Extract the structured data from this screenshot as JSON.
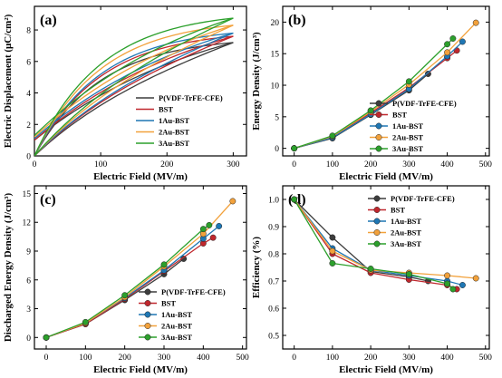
{
  "colors": {
    "P(VDF-TrFE-CFE)": "#3d3d3d",
    "BST": "#c0272d",
    "1Au-BST": "#1f77b4",
    "2Au-BST": "#f2a13b",
    "3Au-BST": "#2ca02c"
  },
  "chart_data": [
    {
      "panel": "(a)",
      "type": "line",
      "xlabel": "Electric Field (MV/m)",
      "ylabel": "Electric Displacement (μC/cm²)",
      "xlim": [
        0,
        320
      ],
      "ylim": [
        0,
        9.5
      ],
      "xticks": [
        0,
        100,
        200,
        300
      ],
      "yticks": [
        0,
        2,
        4,
        6,
        8
      ],
      "legend": "bottom-right",
      "series": [
        {
          "name": "P(VDF-TrFE-CFE)",
          "Dmax": 7.2,
          "Dr": 1.0,
          "Emax": 300
        },
        {
          "name": "BST",
          "Dmax": 7.6,
          "Dr": 1.0,
          "Emax": 300
        },
        {
          "name": "1Au-BST",
          "Dmax": 7.8,
          "Dr": 1.1,
          "Emax": 300
        },
        {
          "name": "2Au-BST",
          "Dmax": 8.3,
          "Dr": 1.2,
          "Emax": 300
        },
        {
          "name": "3Au-BST",
          "Dmax": 8.75,
          "Dr": 1.3,
          "Emax": 300
        }
      ]
    },
    {
      "panel": "(b)",
      "type": "line",
      "xlabel": "Electric Field (MV/m)",
      "ylabel": "Energy Density (J/cm³)",
      "xlim": [
        -30,
        510
      ],
      "ylim": [
        -1.2,
        22.5
      ],
      "xticks": [
        0,
        100,
        200,
        300,
        400,
        500
      ],
      "yticks": [
        0,
        5,
        10,
        15,
        20
      ],
      "legend": "center-right",
      "series": [
        {
          "name": "P(VDF-TrFE-CFE)",
          "x": [
            0,
            100,
            200,
            300,
            350
          ],
          "y": [
            0,
            1.6,
            5.3,
            9.2,
            11.8
          ]
        },
        {
          "name": "BST",
          "x": [
            0,
            100,
            200,
            300,
            400,
            425
          ],
          "y": [
            0,
            1.8,
            5.6,
            9.6,
            14.3,
            15.5
          ]
        },
        {
          "name": "1Au-BST",
          "x": [
            0,
            100,
            200,
            300,
            400,
            440
          ],
          "y": [
            0,
            1.7,
            5.4,
            9.4,
            14.6,
            16.9
          ]
        },
        {
          "name": "2Au-BST",
          "x": [
            0,
            100,
            200,
            300,
            400,
            475
          ],
          "y": [
            0,
            1.9,
            5.8,
            10.1,
            15.2,
            19.9
          ]
        },
        {
          "name": "3Au-BST",
          "x": [
            0,
            100,
            200,
            300,
            400,
            415
          ],
          "y": [
            0,
            2.0,
            6.0,
            10.6,
            16.5,
            17.4
          ]
        }
      ]
    },
    {
      "panel": "(c)",
      "type": "line",
      "xlabel": "Electric Field (MV/m)",
      "ylabel": "Discharged Energy Density (J/cm³)",
      "xlim": [
        -30,
        510
      ],
      "ylim": [
        -1.2,
        15.8
      ],
      "xticks": [
        0,
        100,
        200,
        300,
        400,
        500
      ],
      "yticks": [
        0,
        3,
        6,
        9,
        12,
        15
      ],
      "legend": "center-right",
      "series": [
        {
          "name": "P(VDF-TrFE-CFE)",
          "x": [
            0,
            100,
            200,
            300,
            350
          ],
          "y": [
            0,
            1.4,
            3.9,
            6.6,
            8.2
          ]
        },
        {
          "name": "BST",
          "x": [
            0,
            100,
            200,
            300,
            400,
            425
          ],
          "y": [
            0,
            1.4,
            4.0,
            6.9,
            9.8,
            10.4
          ]
        },
        {
          "name": "1Au-BST",
          "x": [
            0,
            100,
            200,
            300,
            400,
            440
          ],
          "y": [
            0,
            1.5,
            4.1,
            7.0,
            10.3,
            11.6
          ]
        },
        {
          "name": "2Au-BST",
          "x": [
            0,
            100,
            200,
            300,
            400,
            475
          ],
          "y": [
            0,
            1.5,
            4.2,
            7.4,
            10.8,
            14.2
          ]
        },
        {
          "name": "3Au-BST",
          "x": [
            0,
            100,
            200,
            300,
            400,
            415
          ],
          "y": [
            0,
            1.6,
            4.4,
            7.6,
            11.3,
            11.7
          ]
        }
      ]
    },
    {
      "panel": "(d)",
      "type": "line",
      "xlabel": "Electric Field (MV/m)",
      "ylabel": "Efficiency (%)",
      "xlim": [
        -30,
        510
      ],
      "ylim": [
        0.45,
        1.05
      ],
      "xticks": [
        0,
        100,
        200,
        300,
        400,
        500
      ],
      "yticks": [
        0.5,
        0.6,
        0.7,
        0.8,
        0.9,
        1.0
      ],
      "legend": "top-right",
      "series": [
        {
          "name": "P(VDF-TrFE-CFE)",
          "x": [
            0,
            100,
            200,
            300,
            350
          ],
          "y": [
            1.0,
            0.86,
            0.735,
            0.715,
            0.7
          ]
        },
        {
          "name": "BST",
          "x": [
            0,
            100,
            200,
            300,
            400,
            425
          ],
          "y": [
            1.0,
            0.8,
            0.73,
            0.705,
            0.685,
            0.67
          ]
        },
        {
          "name": "1Au-BST",
          "x": [
            0,
            100,
            200,
            300,
            400,
            440
          ],
          "y": [
            1.0,
            0.82,
            0.74,
            0.72,
            0.7,
            0.685
          ]
        },
        {
          "name": "2Au-BST",
          "x": [
            0,
            100,
            200,
            300,
            400,
            475
          ],
          "y": [
            1.0,
            0.81,
            0.74,
            0.73,
            0.72,
            0.71
          ]
        },
        {
          "name": "3Au-BST",
          "x": [
            0,
            100,
            200,
            300,
            400,
            415
          ],
          "y": [
            1.0,
            0.765,
            0.745,
            0.725,
            0.69,
            0.67
          ]
        }
      ]
    }
  ]
}
